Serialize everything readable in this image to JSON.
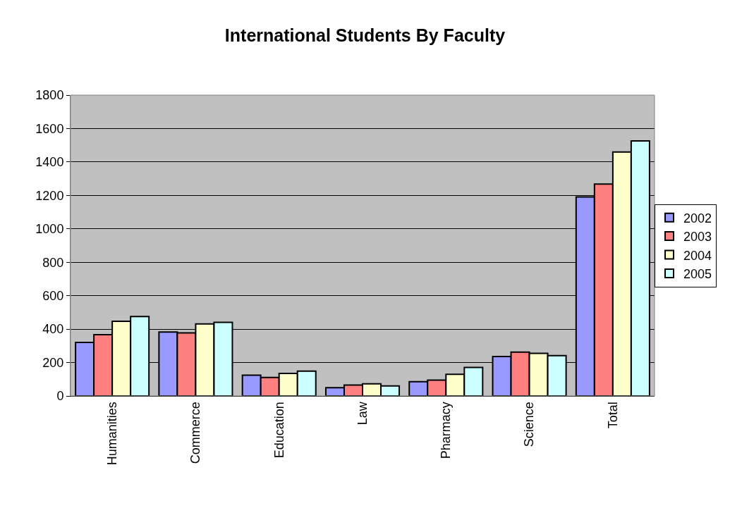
{
  "chart_data": {
    "type": "bar",
    "title": "International Students By Faculty",
    "categories": [
      "Humanities",
      "Commerce",
      "Education",
      "Law",
      "Pharmacy",
      "Science",
      "Total"
    ],
    "series": [
      {
        "name": "2002",
        "color": "#9999ff",
        "values": [
          320,
          383,
          124,
          50,
          85,
          236,
          1191
        ]
      },
      {
        "name": "2003",
        "color": "#ff8080",
        "values": [
          367,
          377,
          111,
          65,
          95,
          262,
          1268
        ]
      },
      {
        "name": "2004",
        "color": "#ffffcc",
        "values": [
          447,
          431,
          135,
          73,
          130,
          255,
          1460
        ]
      },
      {
        "name": "2005",
        "color": "#ccffff",
        "values": [
          475,
          440,
          149,
          60,
          171,
          241,
          1526
        ]
      }
    ],
    "ylim": [
      0,
      1800
    ],
    "yticks": [
      0,
      200,
      400,
      600,
      800,
      1000,
      1200,
      1400,
      1600,
      1800
    ],
    "grid": "y",
    "legend": "right"
  }
}
